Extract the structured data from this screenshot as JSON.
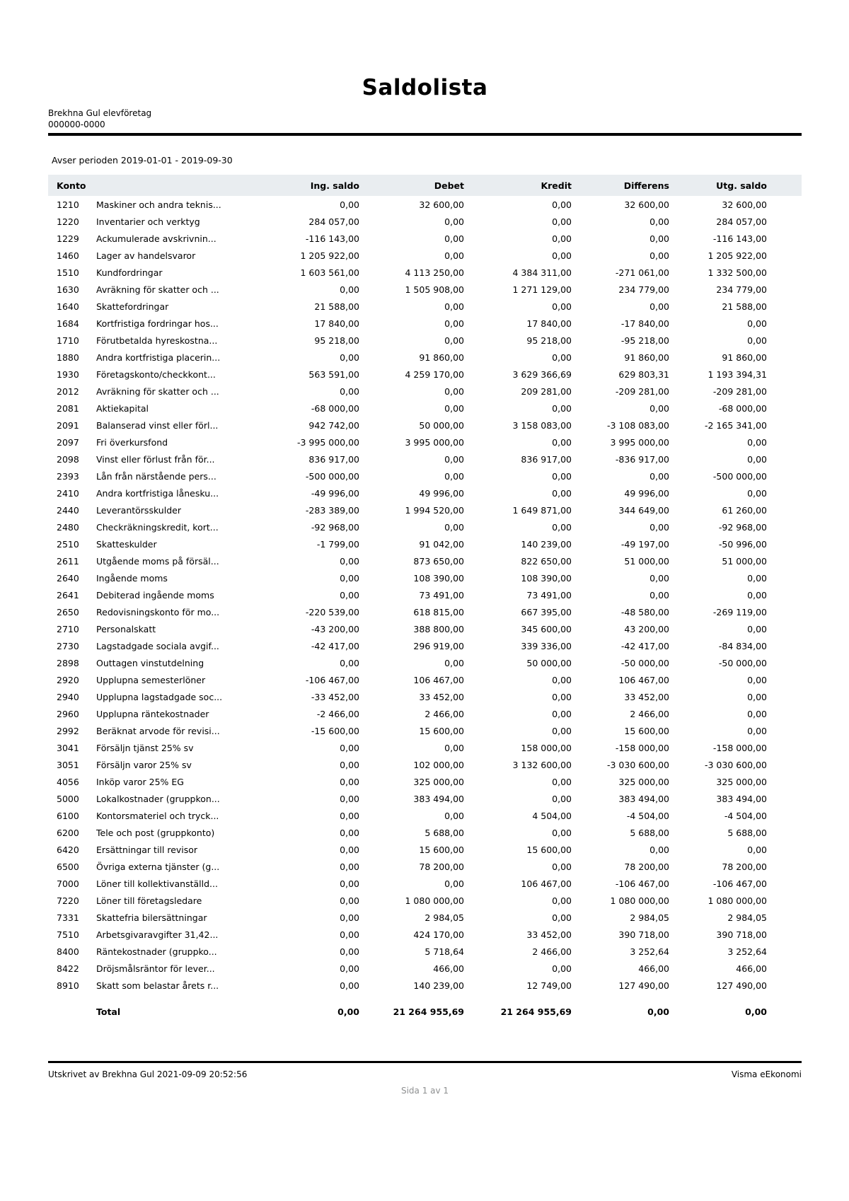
{
  "report": {
    "title": "Saldolista",
    "company_name": "Brekhna Gul elevföretag",
    "org_number": "000000-0000",
    "period_label": "Avser perioden 2019-01-01 - 2019-09-30",
    "footer": {
      "printed_by": "Utskrivet av Brekhna Gul 2021-09-09 20:52:56",
      "brand": "Visma eEkonomi",
      "page": "Sida 1 av 1"
    }
  },
  "colors": {
    "table_header_bg": "#e9edf0",
    "muted_text": "#8e9091",
    "divider": "#000000"
  },
  "table": {
    "columns": [
      "Konto",
      "Ing. saldo",
      "Debet",
      "Kredit",
      "Differens",
      "Utg. saldo"
    ],
    "rows": [
      {
        "konto": "1210",
        "name": "Maskiner och andra teknis...",
        "ing": "0,00",
        "debet": "32 600,00",
        "kredit": "0,00",
        "diff": "32 600,00",
        "utg": "32 600,00"
      },
      {
        "konto": "1220",
        "name": "Inventarier och verktyg",
        "ing": "284 057,00",
        "debet": "0,00",
        "kredit": "0,00",
        "diff": "0,00",
        "utg": "284 057,00"
      },
      {
        "konto": "1229",
        "name": "Ackumulerade avskrivnin...",
        "ing": "-116 143,00",
        "debet": "0,00",
        "kredit": "0,00",
        "diff": "0,00",
        "utg": "-116 143,00"
      },
      {
        "konto": "1460",
        "name": "Lager av handelsvaror",
        "ing": "1 205 922,00",
        "debet": "0,00",
        "kredit": "0,00",
        "diff": "0,00",
        "utg": "1 205 922,00"
      },
      {
        "konto": "1510",
        "name": "Kundfordringar",
        "ing": "1 603 561,00",
        "debet": "4 113 250,00",
        "kredit": "4 384 311,00",
        "diff": "-271 061,00",
        "utg": "1 332 500,00"
      },
      {
        "konto": "1630",
        "name": "Avräkning för skatter och ...",
        "ing": "0,00",
        "debet": "1 505 908,00",
        "kredit": "1 271 129,00",
        "diff": "234 779,00",
        "utg": "234 779,00"
      },
      {
        "konto": "1640",
        "name": "Skattefordringar",
        "ing": "21 588,00",
        "debet": "0,00",
        "kredit": "0,00",
        "diff": "0,00",
        "utg": "21 588,00"
      },
      {
        "konto": "1684",
        "name": "Kortfristiga fordringar hos...",
        "ing": "17 840,00",
        "debet": "0,00",
        "kredit": "17 840,00",
        "diff": "-17 840,00",
        "utg": "0,00"
      },
      {
        "konto": "1710",
        "name": "Förutbetalda hyreskostna...",
        "ing": "95 218,00",
        "debet": "0,00",
        "kredit": "95 218,00",
        "diff": "-95 218,00",
        "utg": "0,00"
      },
      {
        "konto": "1880",
        "name": "Andra kortfristiga placerin...",
        "ing": "0,00",
        "debet": "91 860,00",
        "kredit": "0,00",
        "diff": "91 860,00",
        "utg": "91 860,00"
      },
      {
        "konto": "1930",
        "name": "Företagskonto/checkkont...",
        "ing": "563 591,00",
        "debet": "4 259 170,00",
        "kredit": "3 629 366,69",
        "diff": "629 803,31",
        "utg": "1 193 394,31"
      },
      {
        "konto": "2012",
        "name": "Avräkning för skatter och ...",
        "ing": "0,00",
        "debet": "0,00",
        "kredit": "209 281,00",
        "diff": "-209 281,00",
        "utg": "-209 281,00"
      },
      {
        "konto": "2081",
        "name": "Aktiekapital",
        "ing": "-68 000,00",
        "debet": "0,00",
        "kredit": "0,00",
        "diff": "0,00",
        "utg": "-68 000,00"
      },
      {
        "konto": "2091",
        "name": "Balanserad vinst eller förl...",
        "ing": "942 742,00",
        "debet": "50 000,00",
        "kredit": "3 158 083,00",
        "diff": "-3 108 083,00",
        "utg": "-2 165 341,00"
      },
      {
        "konto": "2097",
        "name": "Fri överkursfond",
        "ing": "-3 995 000,00",
        "debet": "3 995 000,00",
        "kredit": "0,00",
        "diff": "3 995 000,00",
        "utg": "0,00"
      },
      {
        "konto": "2098",
        "name": "Vinst eller förlust från för...",
        "ing": "836 917,00",
        "debet": "0,00",
        "kredit": "836 917,00",
        "diff": "-836 917,00",
        "utg": "0,00"
      },
      {
        "konto": "2393",
        "name": "Lån från närstående pers...",
        "ing": "-500 000,00",
        "debet": "0,00",
        "kredit": "0,00",
        "diff": "0,00",
        "utg": "-500 000,00"
      },
      {
        "konto": "2410",
        "name": "Andra kortfristiga lånesku...",
        "ing": "-49 996,00",
        "debet": "49 996,00",
        "kredit": "0,00",
        "diff": "49 996,00",
        "utg": "0,00"
      },
      {
        "konto": "2440",
        "name": "Leverantörsskulder",
        "ing": "-283 389,00",
        "debet": "1 994 520,00",
        "kredit": "1 649 871,00",
        "diff": "344 649,00",
        "utg": "61 260,00"
      },
      {
        "konto": "2480",
        "name": "Checkräkningskredit, kort...",
        "ing": "-92 968,00",
        "debet": "0,00",
        "kredit": "0,00",
        "diff": "0,00",
        "utg": "-92 968,00"
      },
      {
        "konto": "2510",
        "name": "Skatteskulder",
        "ing": "-1 799,00",
        "debet": "91 042,00",
        "kredit": "140 239,00",
        "diff": "-49 197,00",
        "utg": "-50 996,00"
      },
      {
        "konto": "2611",
        "name": "Utgående moms på försäl...",
        "ing": "0,00",
        "debet": "873 650,00",
        "kredit": "822 650,00",
        "diff": "51 000,00",
        "utg": "51 000,00"
      },
      {
        "konto": "2640",
        "name": "Ingående moms",
        "ing": "0,00",
        "debet": "108 390,00",
        "kredit": "108 390,00",
        "diff": "0,00",
        "utg": "0,00"
      },
      {
        "konto": "2641",
        "name": "Debiterad ingående moms",
        "ing": "0,00",
        "debet": "73 491,00",
        "kredit": "73 491,00",
        "diff": "0,00",
        "utg": "0,00"
      },
      {
        "konto": "2650",
        "name": "Redovisningskonto för mo...",
        "ing": "-220 539,00",
        "debet": "618 815,00",
        "kredit": "667 395,00",
        "diff": "-48 580,00",
        "utg": "-269 119,00"
      },
      {
        "konto": "2710",
        "name": "Personalskatt",
        "ing": "-43 200,00",
        "debet": "388 800,00",
        "kredit": "345 600,00",
        "diff": "43 200,00",
        "utg": "0,00"
      },
      {
        "konto": "2730",
        "name": "Lagstadgade sociala avgif...",
        "ing": "-42 417,00",
        "debet": "296 919,00",
        "kredit": "339 336,00",
        "diff": "-42 417,00",
        "utg": "-84 834,00"
      },
      {
        "konto": "2898",
        "name": "Outtagen vinstutdelning",
        "ing": "0,00",
        "debet": "0,00",
        "kredit": "50 000,00",
        "diff": "-50 000,00",
        "utg": "-50 000,00"
      },
      {
        "konto": "2920",
        "name": "Upplupna semesterlöner",
        "ing": "-106 467,00",
        "debet": "106 467,00",
        "kredit": "0,00",
        "diff": "106 467,00",
        "utg": "0,00"
      },
      {
        "konto": "2940",
        "name": "Upplupna lagstadgade soc...",
        "ing": "-33 452,00",
        "debet": "33 452,00",
        "kredit": "0,00",
        "diff": "33 452,00",
        "utg": "0,00"
      },
      {
        "konto": "2960",
        "name": "Upplupna räntekostnader",
        "ing": "-2 466,00",
        "debet": "2 466,00",
        "kredit": "0,00",
        "diff": "2 466,00",
        "utg": "0,00"
      },
      {
        "konto": "2992",
        "name": "Beräknat arvode för revisi...",
        "ing": "-15 600,00",
        "debet": "15 600,00",
        "kredit": "0,00",
        "diff": "15 600,00",
        "utg": "0,00"
      },
      {
        "konto": "3041",
        "name": "Försäljn tjänst 25% sv",
        "ing": "0,00",
        "debet": "0,00",
        "kredit": "158 000,00",
        "diff": "-158 000,00",
        "utg": "-158 000,00"
      },
      {
        "konto": "3051",
        "name": "Försäljn varor 25% sv",
        "ing": "0,00",
        "debet": "102 000,00",
        "kredit": "3 132 600,00",
        "diff": "-3 030 600,00",
        "utg": "-3 030 600,00"
      },
      {
        "konto": "4056",
        "name": "Inköp varor 25% EG",
        "ing": "0,00",
        "debet": "325 000,00",
        "kredit": "0,00",
        "diff": "325 000,00",
        "utg": "325 000,00"
      },
      {
        "konto": "5000",
        "name": "Lokalkostnader (gruppkon...",
        "ing": "0,00",
        "debet": "383 494,00",
        "kredit": "0,00",
        "diff": "383 494,00",
        "utg": "383 494,00"
      },
      {
        "konto": "6100",
        "name": "Kontorsmateriel och tryck...",
        "ing": "0,00",
        "debet": "0,00",
        "kredit": "4 504,00",
        "diff": "-4 504,00",
        "utg": "-4 504,00"
      },
      {
        "konto": "6200",
        "name": "Tele och post (gruppkonto)",
        "ing": "0,00",
        "debet": "5 688,00",
        "kredit": "0,00",
        "diff": "5 688,00",
        "utg": "5 688,00"
      },
      {
        "konto": "6420",
        "name": "Ersättningar till revisor",
        "ing": "0,00",
        "debet": "15 600,00",
        "kredit": "15 600,00",
        "diff": "0,00",
        "utg": "0,00"
      },
      {
        "konto": "6500",
        "name": "Övriga externa tjänster (g...",
        "ing": "0,00",
        "debet": "78 200,00",
        "kredit": "0,00",
        "diff": "78 200,00",
        "utg": "78 200,00"
      },
      {
        "konto": "7000",
        "name": "Löner till kollektivanställd...",
        "ing": "0,00",
        "debet": "0,00",
        "kredit": "106 467,00",
        "diff": "-106 467,00",
        "utg": "-106 467,00"
      },
      {
        "konto": "7220",
        "name": "Löner till företagsledare",
        "ing": "0,00",
        "debet": "1 080 000,00",
        "kredit": "0,00",
        "diff": "1 080 000,00",
        "utg": "1 080 000,00"
      },
      {
        "konto": "7331",
        "name": "Skattefria bilersättningar",
        "ing": "0,00",
        "debet": "2 984,05",
        "kredit": "0,00",
        "diff": "2 984,05",
        "utg": "2 984,05"
      },
      {
        "konto": "7510",
        "name": "Arbetsgivaravgifter 31,42...",
        "ing": "0,00",
        "debet": "424 170,00",
        "kredit": "33 452,00",
        "diff": "390 718,00",
        "utg": "390 718,00"
      },
      {
        "konto": "8400",
        "name": "Räntekostnader (gruppko...",
        "ing": "0,00",
        "debet": "5 718,64",
        "kredit": "2 466,00",
        "diff": "3 252,64",
        "utg": "3 252,64"
      },
      {
        "konto": "8422",
        "name": "Dröjsmålsräntor för lever...",
        "ing": "0,00",
        "debet": "466,00",
        "kredit": "0,00",
        "diff": "466,00",
        "utg": "466,00"
      },
      {
        "konto": "8910",
        "name": "Skatt som belastar årets r...",
        "ing": "0,00",
        "debet": "140 239,00",
        "kredit": "12 749,00",
        "diff": "127 490,00",
        "utg": "127 490,00"
      }
    ],
    "total": {
      "label": "Total",
      "ing": "0,00",
      "debet": "21 264 955,69",
      "kredit": "21 264 955,69",
      "diff": "0,00",
      "utg": "0,00"
    }
  }
}
